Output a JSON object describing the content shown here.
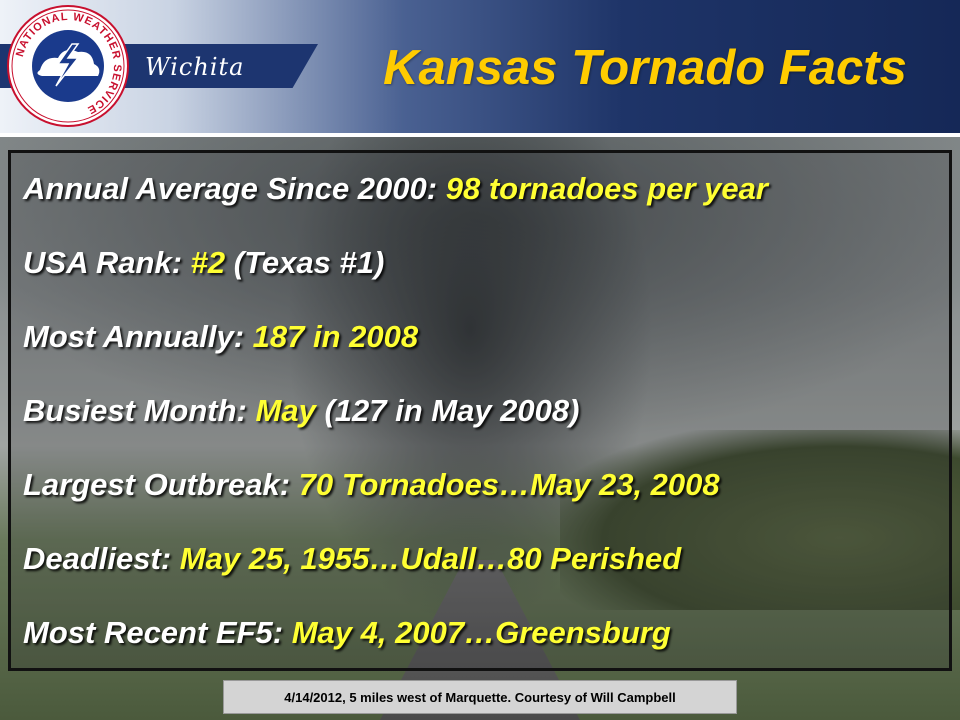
{
  "header": {
    "office": "Wichita",
    "title": "Kansas Tornado Facts",
    "logo_text": "NATIONAL WEATHER SERVICE"
  },
  "facts": [
    {
      "label": "Annual Average Since 2000:",
      "value": "98 tornadoes per year",
      "extra": ""
    },
    {
      "label": "USA Rank:",
      "value": "#2",
      "extra": "(Texas #1)"
    },
    {
      "label": "Most Annually:",
      "value": "187 in 2008",
      "extra": ""
    },
    {
      "label": "Busiest Month:",
      "value": "May",
      "extra": "(127 in May 2008)"
    },
    {
      "label": "Largest Outbreak:",
      "value": "70 Tornadoes…May 23, 2008",
      "extra": ""
    },
    {
      "label": "Deadliest:",
      "value": "May 25, 1955…Udall…80 Perished",
      "extra": ""
    },
    {
      "label": "Most Recent EF5:",
      "value": "May 4, 2007…Greensburg",
      "extra": ""
    }
  ],
  "caption": "4/14/2012, 5 miles west of Marquette. Courtesy of Will Campbell",
  "colors": {
    "title": "#ffcc00",
    "highlight": "#ffff33",
    "header_dark": "#152857"
  }
}
